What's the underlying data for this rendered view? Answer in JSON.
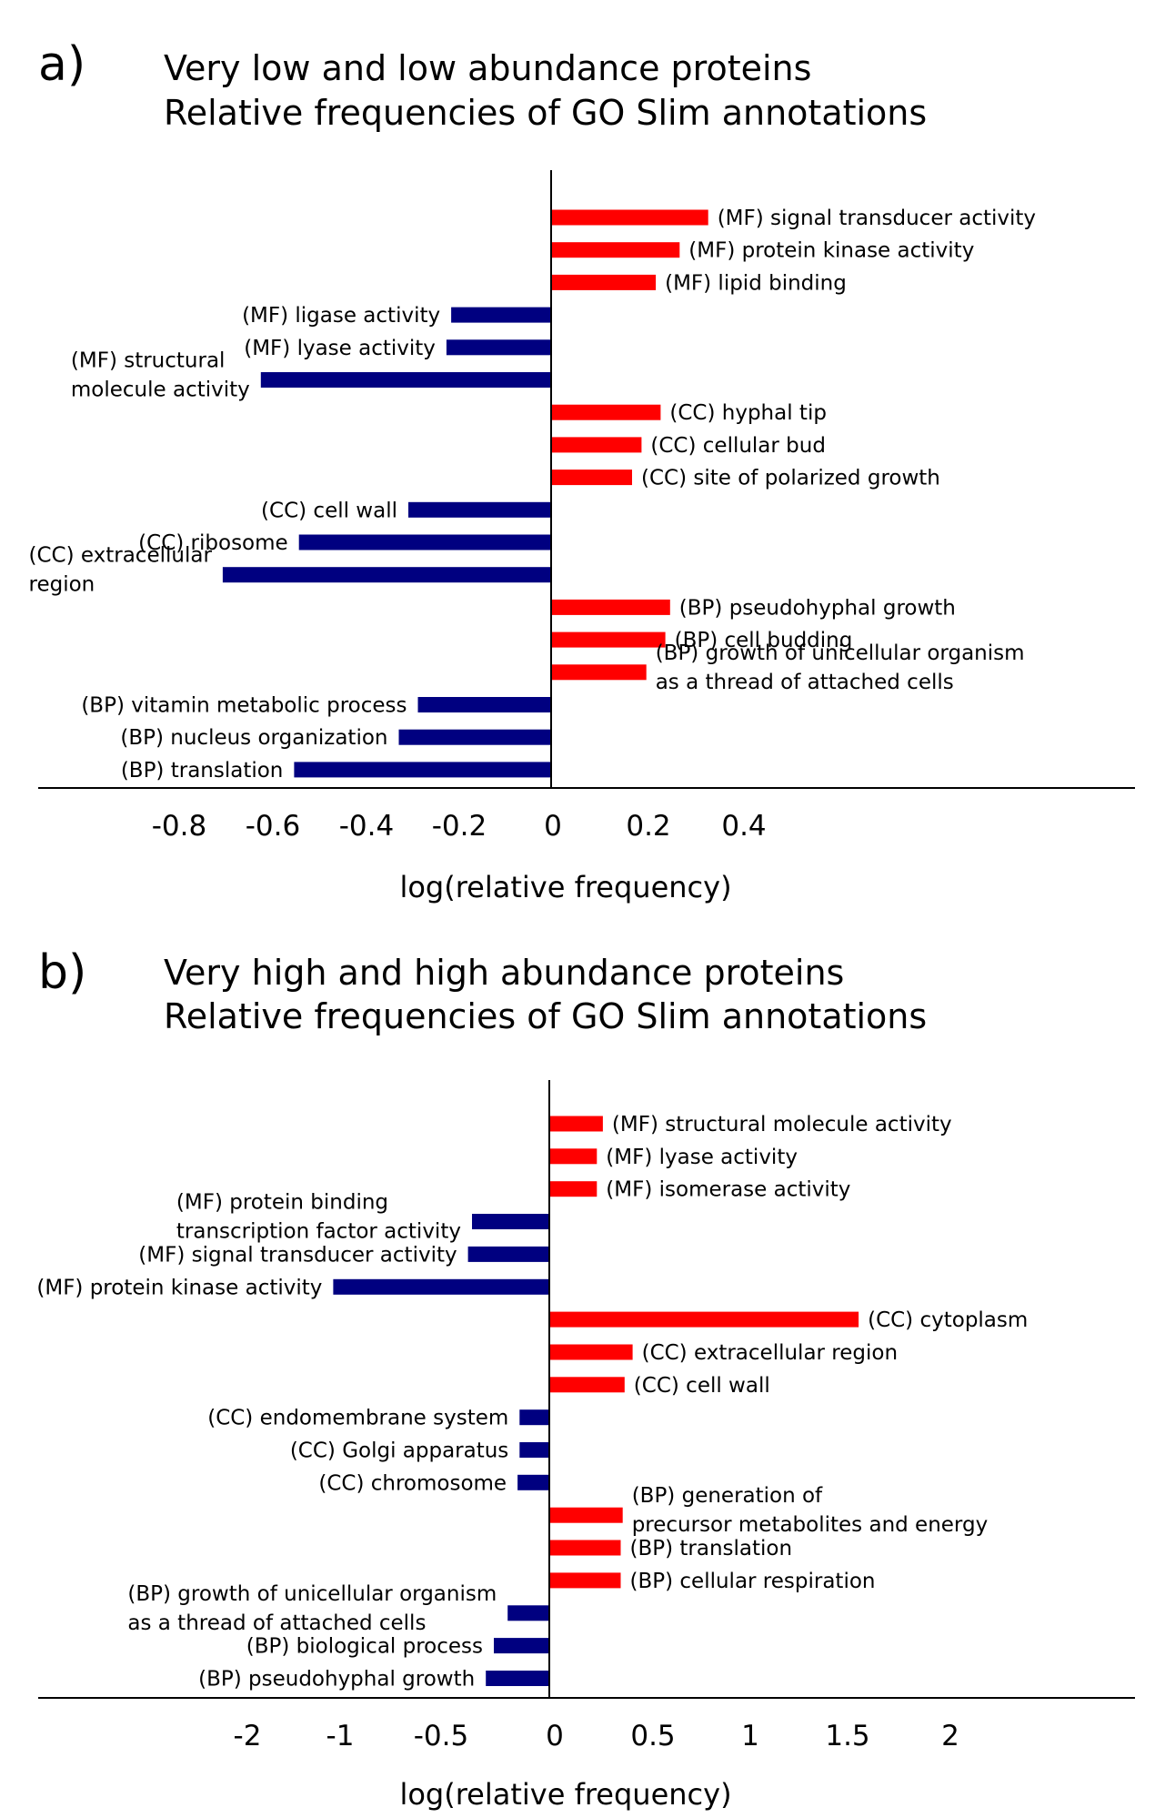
{
  "colors": {
    "positive": "#ff0000",
    "negative": "#000080",
    "axis": "#000000"
  },
  "chart_data": [
    {
      "type": "bar",
      "orientation": "horizontal",
      "panel_label": "a)",
      "title_lines": [
        "Very low and low abundance proteins",
        "Relative frequencies of GO Slim annotations"
      ],
      "xlabel": "log(relative frequency)",
      "xlim": [
        -0.8,
        0.4
      ],
      "xticks": [
        -0.8,
        -0.6,
        -0.4,
        -0.2,
        0,
        0.2,
        0.4
      ],
      "tick_labels": [
        "-0.8",
        "-0.6",
        "-0.4",
        "-0.2",
        "0",
        "0.2",
        "0.4"
      ],
      "bars": [
        {
          "label": [
            "(MF) signal transducer activity"
          ],
          "value": 0.33
        },
        {
          "label": [
            "(MF) protein kinase activity"
          ],
          "value": 0.27
        },
        {
          "label": [
            "(MF) lipid binding"
          ],
          "value": 0.22
        },
        {
          "label": [
            "(MF) ligase activity"
          ],
          "value": -0.21
        },
        {
          "label": [
            "(MF) lyase activity"
          ],
          "value": -0.22
        },
        {
          "label": [
            "(MF) structural",
            "molecule activity"
          ],
          "value": -0.61
        },
        {
          "label": [
            "(CC) hyphal tip"
          ],
          "value": 0.23
        },
        {
          "label": [
            "(CC) cellular bud"
          ],
          "value": 0.19
        },
        {
          "label": [
            "(CC) site of polarized growth"
          ],
          "value": 0.17
        },
        {
          "label": [
            "(CC) cell wall"
          ],
          "value": -0.3
        },
        {
          "label": [
            "(CC) ribosome"
          ],
          "value": -0.53
        },
        {
          "label": [
            "(CC) extracellular",
            "region"
          ],
          "value": -0.69
        },
        {
          "label": [
            "(BP) pseudohyphal growth"
          ],
          "value": 0.25
        },
        {
          "label": [
            "(BP) cell budding"
          ],
          "value": 0.24
        },
        {
          "label": [
            "(BP) growth of unicellular organism",
            "as a thread of attached cells"
          ],
          "value": 0.2
        },
        {
          "label": [
            "(BP) vitamin metabolic process"
          ],
          "value": -0.28
        },
        {
          "label": [
            "(BP) nucleus organization"
          ],
          "value": -0.32
        },
        {
          "label": [
            "(BP) translation"
          ],
          "value": -0.54
        }
      ]
    },
    {
      "type": "bar",
      "orientation": "horizontal",
      "panel_label": "b)",
      "title_lines": [
        "Very high and high abundance proteins",
        "Relative frequencies of GO Slim annotations"
      ],
      "xlabel": "log(relative frequency)",
      "xlim": [
        -2,
        2
      ],
      "xticks": [
        -2,
        -1,
        -0.5,
        0,
        0.5,
        1,
        1.5,
        2
      ],
      "tick_labels": [
        "-2",
        "-1",
        "-0.5",
        "0",
        "0.5",
        "1",
        "1.5",
        "2"
      ],
      "bars": [
        {
          "label": [
            "(MF) structural molecule activity"
          ],
          "value": 0.27
        },
        {
          "label": [
            "(MF) lyase activity"
          ],
          "value": 0.24
        },
        {
          "label": [
            "(MF) isomerase activity"
          ],
          "value": 0.24
        },
        {
          "label": [
            "(MF) protein binding",
            "transcription factor activity"
          ],
          "value": -0.39
        },
        {
          "label": [
            "(MF) signal transducer activity"
          ],
          "value": -0.41
        },
        {
          "label": [
            "(MF) protein kinase activity"
          ],
          "value": -1.09
        },
        {
          "label": [
            "(CC) cytoplasm"
          ],
          "value": 1.56
        },
        {
          "label": [
            "(CC) extracellular region"
          ],
          "value": 0.42
        },
        {
          "label": [
            "(CC) cell wall"
          ],
          "value": 0.38
        },
        {
          "label": [
            "(CC) endomembrane system"
          ],
          "value": -0.15
        },
        {
          "label": [
            "(CC) Golgi apparatus"
          ],
          "value": -0.15
        },
        {
          "label": [
            "(CC) chromosome"
          ],
          "value": -0.16
        },
        {
          "label": [
            "(BP) generation of",
            "precursor metabolites and energy"
          ],
          "value": 0.37
        },
        {
          "label": [
            "(BP) translation"
          ],
          "value": 0.36
        },
        {
          "label": [
            "(BP) cellular respiration"
          ],
          "value": 0.36
        },
        {
          "label": [
            "(BP) growth of unicellular organism",
            "as a thread of attached cells"
          ],
          "value": -0.21
        },
        {
          "label": [
            "(BP) biological process"
          ],
          "value": -0.28
        },
        {
          "label": [
            "(BP) pseudohyphal growth"
          ],
          "value": -0.32
        }
      ]
    }
  ]
}
